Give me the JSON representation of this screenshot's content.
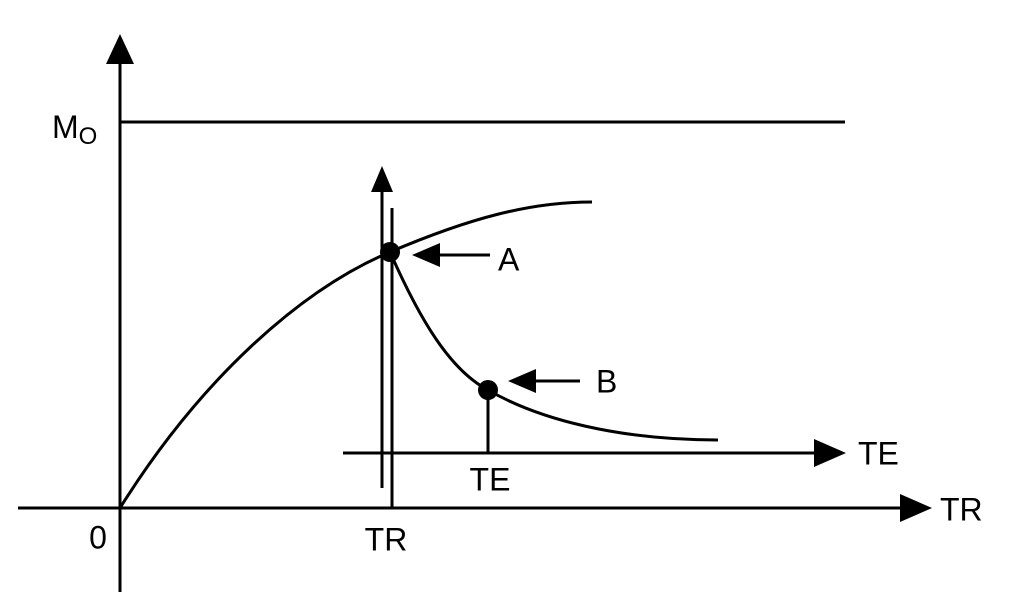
{
  "axes": {
    "y_label": {
      "main": "M",
      "sub": "O"
    },
    "origin": "0",
    "x_label": "TR",
    "te_label": "TE"
  },
  "ticks": {
    "tr": "TR",
    "te": "TE"
  },
  "points": [
    {
      "label": "A"
    },
    {
      "label": "B"
    }
  ]
}
